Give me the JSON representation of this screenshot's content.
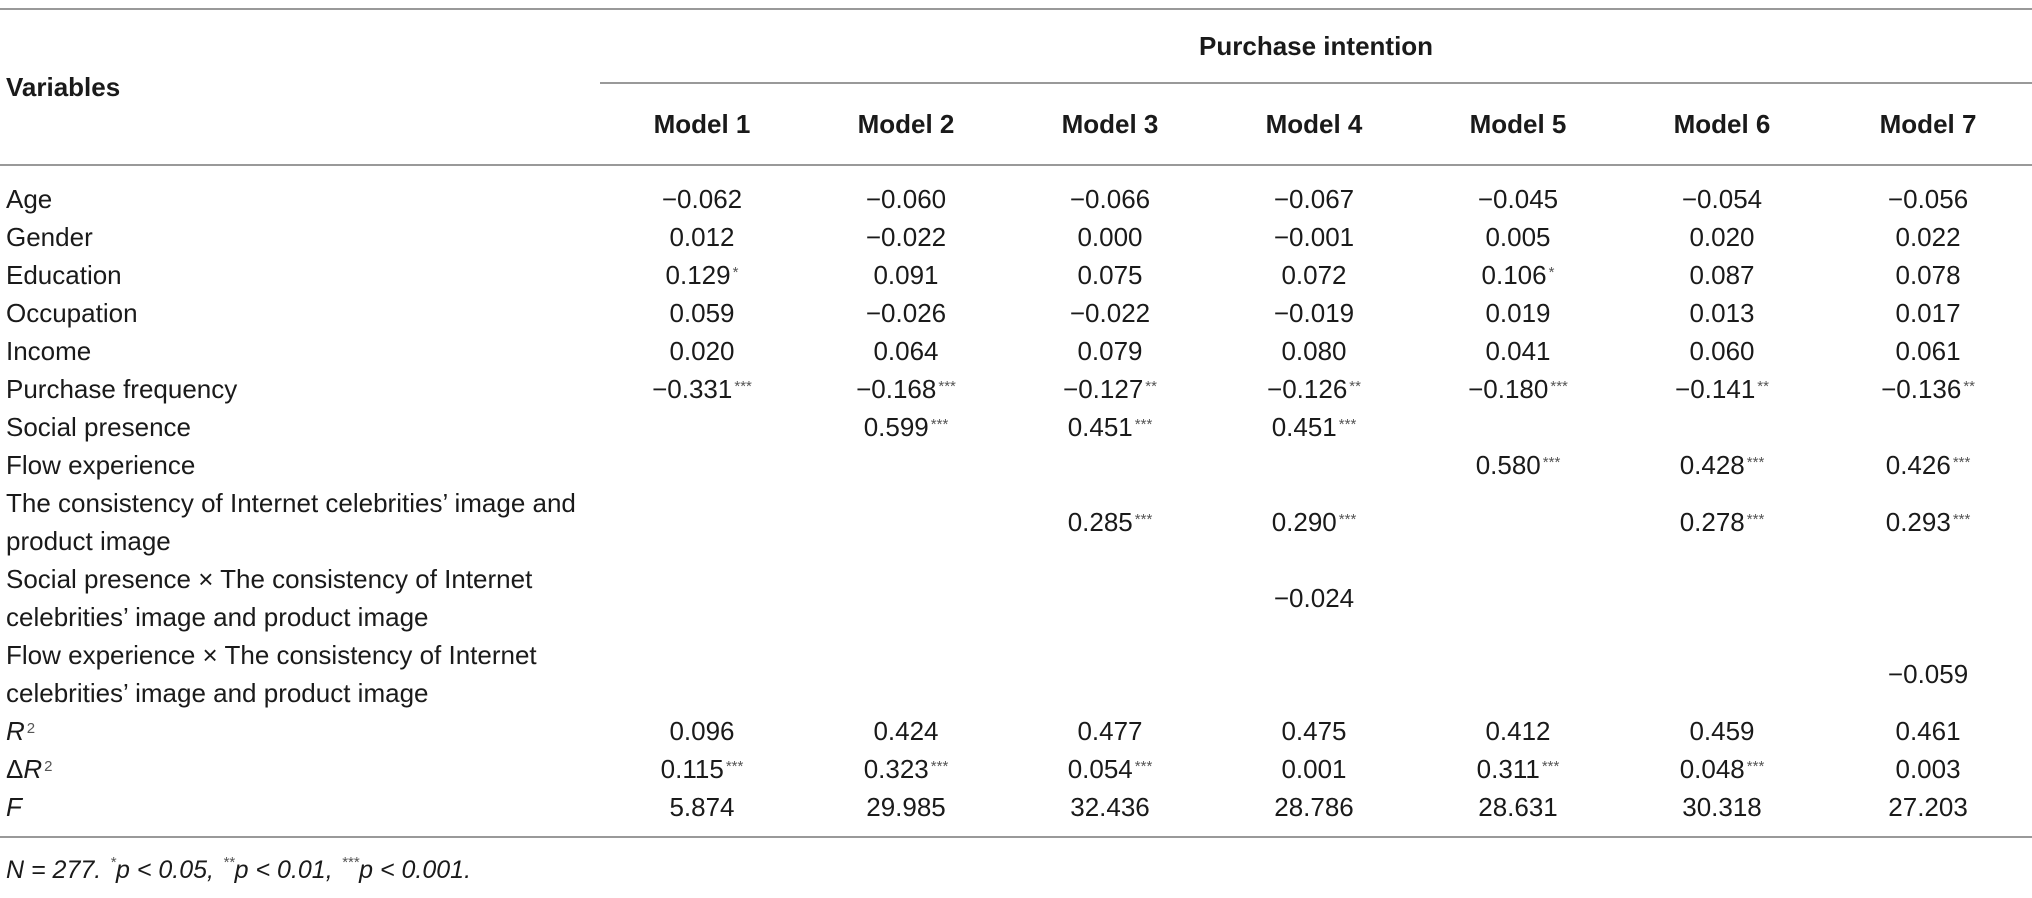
{
  "header": {
    "variables_label": "Variables",
    "group_label": "Purchase intention",
    "models": [
      "Model 1",
      "Model 2",
      "Model 3",
      "Model 4",
      "Model 5",
      "Model 6",
      "Model 7"
    ]
  },
  "rows": [
    {
      "label": "Age",
      "cells": [
        [
          "−0.062",
          ""
        ],
        [
          "−0.060",
          ""
        ],
        [
          "−0.066",
          ""
        ],
        [
          "−0.067",
          ""
        ],
        [
          "−0.045",
          ""
        ],
        [
          "−0.054",
          ""
        ],
        [
          "−0.056",
          ""
        ]
      ]
    },
    {
      "label": "Gender",
      "cells": [
        [
          "0.012",
          ""
        ],
        [
          "−0.022",
          ""
        ],
        [
          "0.000",
          ""
        ],
        [
          "−0.001",
          ""
        ],
        [
          "0.005",
          ""
        ],
        [
          "0.020",
          ""
        ],
        [
          "0.022",
          ""
        ]
      ]
    },
    {
      "label": "Education",
      "cells": [
        [
          "0.129",
          "*"
        ],
        [
          "0.091",
          ""
        ],
        [
          "0.075",
          ""
        ],
        [
          "0.072",
          ""
        ],
        [
          "0.106",
          "*"
        ],
        [
          "0.087",
          ""
        ],
        [
          "0.078",
          ""
        ]
      ]
    },
    {
      "label": "Occupation",
      "cells": [
        [
          "0.059",
          ""
        ],
        [
          "−0.026",
          ""
        ],
        [
          "−0.022",
          ""
        ],
        [
          "−0.019",
          ""
        ],
        [
          "0.019",
          ""
        ],
        [
          "0.013",
          ""
        ],
        [
          "0.017",
          ""
        ]
      ]
    },
    {
      "label": "Income",
      "cells": [
        [
          "0.020",
          ""
        ],
        [
          "0.064",
          ""
        ],
        [
          "0.079",
          ""
        ],
        [
          "0.080",
          ""
        ],
        [
          "0.041",
          ""
        ],
        [
          "0.060",
          ""
        ],
        [
          "0.061",
          ""
        ]
      ]
    },
    {
      "label": "Purchase frequency",
      "cells": [
        [
          "−0.331",
          "***"
        ],
        [
          "−0.168",
          "***"
        ],
        [
          "−0.127",
          "**"
        ],
        [
          "−0.126",
          "**"
        ],
        [
          "−0.180",
          "***"
        ],
        [
          "−0.141",
          "**"
        ],
        [
          "−0.136",
          "**"
        ]
      ]
    },
    {
      "label": "Social presence",
      "cells": [
        [
          "",
          ""
        ],
        [
          "0.599",
          "***"
        ],
        [
          "0.451",
          "***"
        ],
        [
          "0.451",
          "***"
        ],
        [
          "",
          ""
        ],
        [
          "",
          ""
        ],
        [
          "",
          ""
        ]
      ]
    },
    {
      "label": "Flow experience",
      "cells": [
        [
          "",
          ""
        ],
        [
          "",
          ""
        ],
        [
          "",
          ""
        ],
        [
          "",
          ""
        ],
        [
          "0.580",
          "***"
        ],
        [
          "0.428",
          "***"
        ],
        [
          "0.426",
          "***"
        ]
      ]
    },
    {
      "label": "The consistency of Internet celebrities’ image and product image",
      "cells": [
        [
          "",
          ""
        ],
        [
          "",
          ""
        ],
        [
          "0.285",
          "***"
        ],
        [
          "0.290",
          "***"
        ],
        [
          "",
          ""
        ],
        [
          "0.278",
          "***"
        ],
        [
          "0.293",
          "***"
        ]
      ]
    },
    {
      "label": "Social presence × The consistency of Internet celebrities’ image and product image",
      "cells": [
        [
          "",
          ""
        ],
        [
          "",
          ""
        ],
        [
          "",
          ""
        ],
        [
          "−0.024",
          ""
        ],
        [
          "",
          ""
        ],
        [
          "",
          ""
        ],
        [
          "",
          ""
        ]
      ]
    },
    {
      "label": "Flow experience × The consistency of Internet celebrities’ image and product image",
      "cells": [
        [
          "",
          ""
        ],
        [
          "",
          ""
        ],
        [
          "",
          ""
        ],
        [
          "",
          ""
        ],
        [
          "",
          ""
        ],
        [
          "",
          ""
        ],
        [
          "−0.059",
          ""
        ]
      ]
    }
  ],
  "stats": [
    {
      "prefix": "",
      "symbol": "R",
      "superscript": "2",
      "cells": [
        [
          "0.096",
          ""
        ],
        [
          "0.424",
          ""
        ],
        [
          "0.477",
          ""
        ],
        [
          "0.475",
          ""
        ],
        [
          "0.412",
          ""
        ],
        [
          "0.459",
          ""
        ],
        [
          "0.461",
          ""
        ]
      ]
    },
    {
      "prefix": "Δ",
      "symbol": "R",
      "superscript": "2",
      "cells": [
        [
          "0.115",
          "***"
        ],
        [
          "0.323",
          "***"
        ],
        [
          "0.054",
          "***"
        ],
        [
          "0.001",
          ""
        ],
        [
          "0.311",
          "***"
        ],
        [
          "0.048",
          "***"
        ],
        [
          "0.003",
          ""
        ]
      ]
    },
    {
      "prefix": "",
      "symbol": "F",
      "superscript": "",
      "cells": [
        [
          "5.874",
          ""
        ],
        [
          "29.985",
          ""
        ],
        [
          "32.436",
          ""
        ],
        [
          "28.786",
          ""
        ],
        [
          "28.631",
          ""
        ],
        [
          "30.318",
          ""
        ],
        [
          "27.203",
          ""
        ]
      ]
    }
  ],
  "note": {
    "n_text": "N = 277. ",
    "p1_sup": "*",
    "p1_text": "p < 0.05, ",
    "p2_sup": "**",
    "p2_text": "p < 0.01, ",
    "p3_sup": "***",
    "p3_text": "p < 0.001."
  }
}
